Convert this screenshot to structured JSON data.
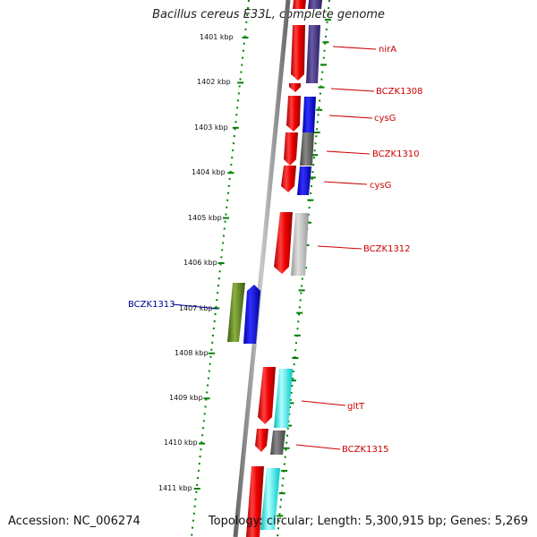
{
  "title": "Bacillus cereus E33L, complete genome",
  "accession": "Accession: NC_006274",
  "topology": "Topology: circular; Length: 5,300,915 bp; Genes: 5,269",
  "colors": {
    "ruler": "#008000",
    "backbone": "#808080",
    "label_forward": "#cc0000",
    "label_reverse": "#000099"
  },
  "ruler_labels": [
    "1401 kbp",
    "1402 kbp",
    "1403 kbp",
    "1404 kbp",
    "1405 kbp",
    "1406 kbp",
    "1407 kbp",
    "1408 kbp",
    "1409 kbp",
    "1410 kbp",
    "1411 kbp"
  ],
  "gene_labels": [
    {
      "text": "nirA",
      "color": "#cc0000"
    },
    {
      "text": "BCZK1308",
      "color": "#cc0000"
    },
    {
      "text": "cysG",
      "color": "#cc0000"
    },
    {
      "text": "BCZK1310",
      "color": "#cc0000"
    },
    {
      "text": "cysG",
      "color": "#cc0000"
    },
    {
      "text": "BCZK1312",
      "color": "#cc0000"
    },
    {
      "text": "BCZK1313",
      "color": "#000099"
    },
    {
      "text": "gltT",
      "color": "#cc0000"
    },
    {
      "text": "BCZK1315",
      "color": "#cc0000"
    }
  ]
}
